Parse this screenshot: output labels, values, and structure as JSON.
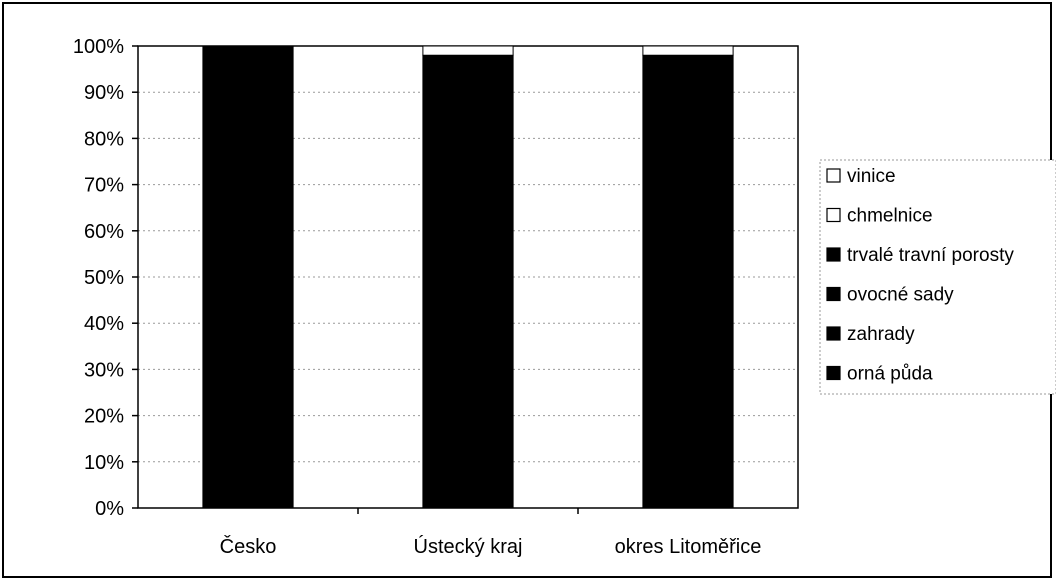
{
  "chart_data": {
    "type": "bar",
    "stacked": true,
    "stack_mode": "percent",
    "categories": [
      "Česko",
      "Ústecký kraj",
      "okres Litoměřice"
    ],
    "series": [
      {
        "name": "orná půda",
        "color": "#000000",
        "values": [
          100,
          98,
          98
        ]
      },
      {
        "name": "zahrady",
        "color": "#000000",
        "values": [
          0,
          0,
          0
        ]
      },
      {
        "name": "ovocné sady",
        "color": "#000000",
        "values": [
          0,
          0,
          0
        ]
      },
      {
        "name": "trvalé travní porosty",
        "color": "#000000",
        "values": [
          0,
          0,
          0
        ]
      },
      {
        "name": "chmelnice",
        "color": "#ffffff",
        "values": [
          0,
          2,
          2
        ]
      },
      {
        "name": "vinice",
        "color": "#ffffff",
        "values": [
          0,
          0,
          0
        ]
      }
    ],
    "y_ticks": [
      "0%",
      "10%",
      "20%",
      "30%",
      "40%",
      "50%",
      "60%",
      "70%",
      "80%",
      "90%",
      "100%"
    ],
    "ylim": [
      0,
      100
    ],
    "grid": true,
    "legend_position": "right",
    "legend_order": [
      "vinice",
      "chmelnice",
      "trvalé travní porosty",
      "ovocné sady",
      "zahrady",
      "orná půda"
    ]
  }
}
